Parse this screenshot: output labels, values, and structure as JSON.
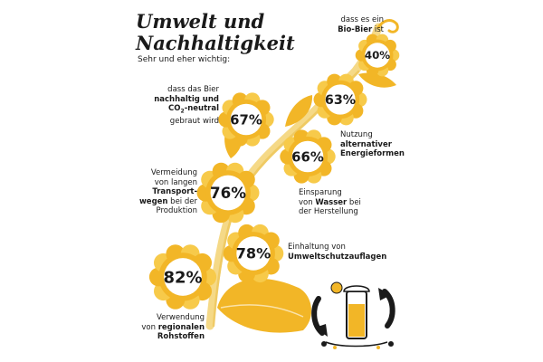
{
  "title_line1": "Umwelt und",
  "title_line2": "Nachhaltigkeit",
  "subtitle": "Sehr und eher wichtig:",
  "colors": {
    "petal": "#f2b627",
    "petal_light": "#f7ca4a",
    "stem": "#f5d987",
    "text": "#1a1a1a"
  },
  "chart_data": {
    "type": "bar",
    "title": "Umwelt und Nachhaltigkeit",
    "subtitle": "Sehr und eher wichtig:",
    "unit": "%",
    "categories": [
      "dass es ein Bio-Bier ist",
      "Nutzung alternativer Energieformen",
      "dass das Bier nachhaltig und CO2-neutral gebraut wird",
      "Einsparung von Wasser bei der Herstellung",
      "Vermeidung von langen Transportwegen bei der Produktion",
      "Einhaltung von Umweltschutzauflagen",
      "Verwendung von regionalen Rohstoffen"
    ],
    "values": [
      40,
      63,
      67,
      66,
      76,
      78,
      82
    ],
    "ylim": [
      0,
      100
    ]
  },
  "labels": {
    "bio": {
      "t1": "dass es ein",
      "b1": "Bio-Bier",
      "t2": " ist"
    },
    "energie": {
      "t1": "Nutzung",
      "b1": "alternativer",
      "b2": "Energieformen"
    },
    "co2": {
      "t1": "dass das Bier",
      "b1": "nachhaltig und",
      "b2a": "CO",
      "b2sub": "2",
      "b2b": "-neutral",
      "t2": "gebraut wird"
    },
    "wasser": {
      "t1": "Einsparung",
      "t2a": "von ",
      "b1": "Wasser",
      "t2b": " bei",
      "t3": "der Herstellung"
    },
    "transport": {
      "t1": "Vermeidung",
      "t2": "von langen",
      "b1": "Transport-",
      "b2": "wegen",
      "t3": " bei der",
      "t4": "Produktion"
    },
    "umwelt": {
      "t1": "Einhaltung von",
      "b1": "Umweltschutzauflagen"
    },
    "regional": {
      "t1": "Verwendung",
      "t2": "von ",
      "b1": "regionalen",
      "b2": "Rohstoffen"
    }
  }
}
